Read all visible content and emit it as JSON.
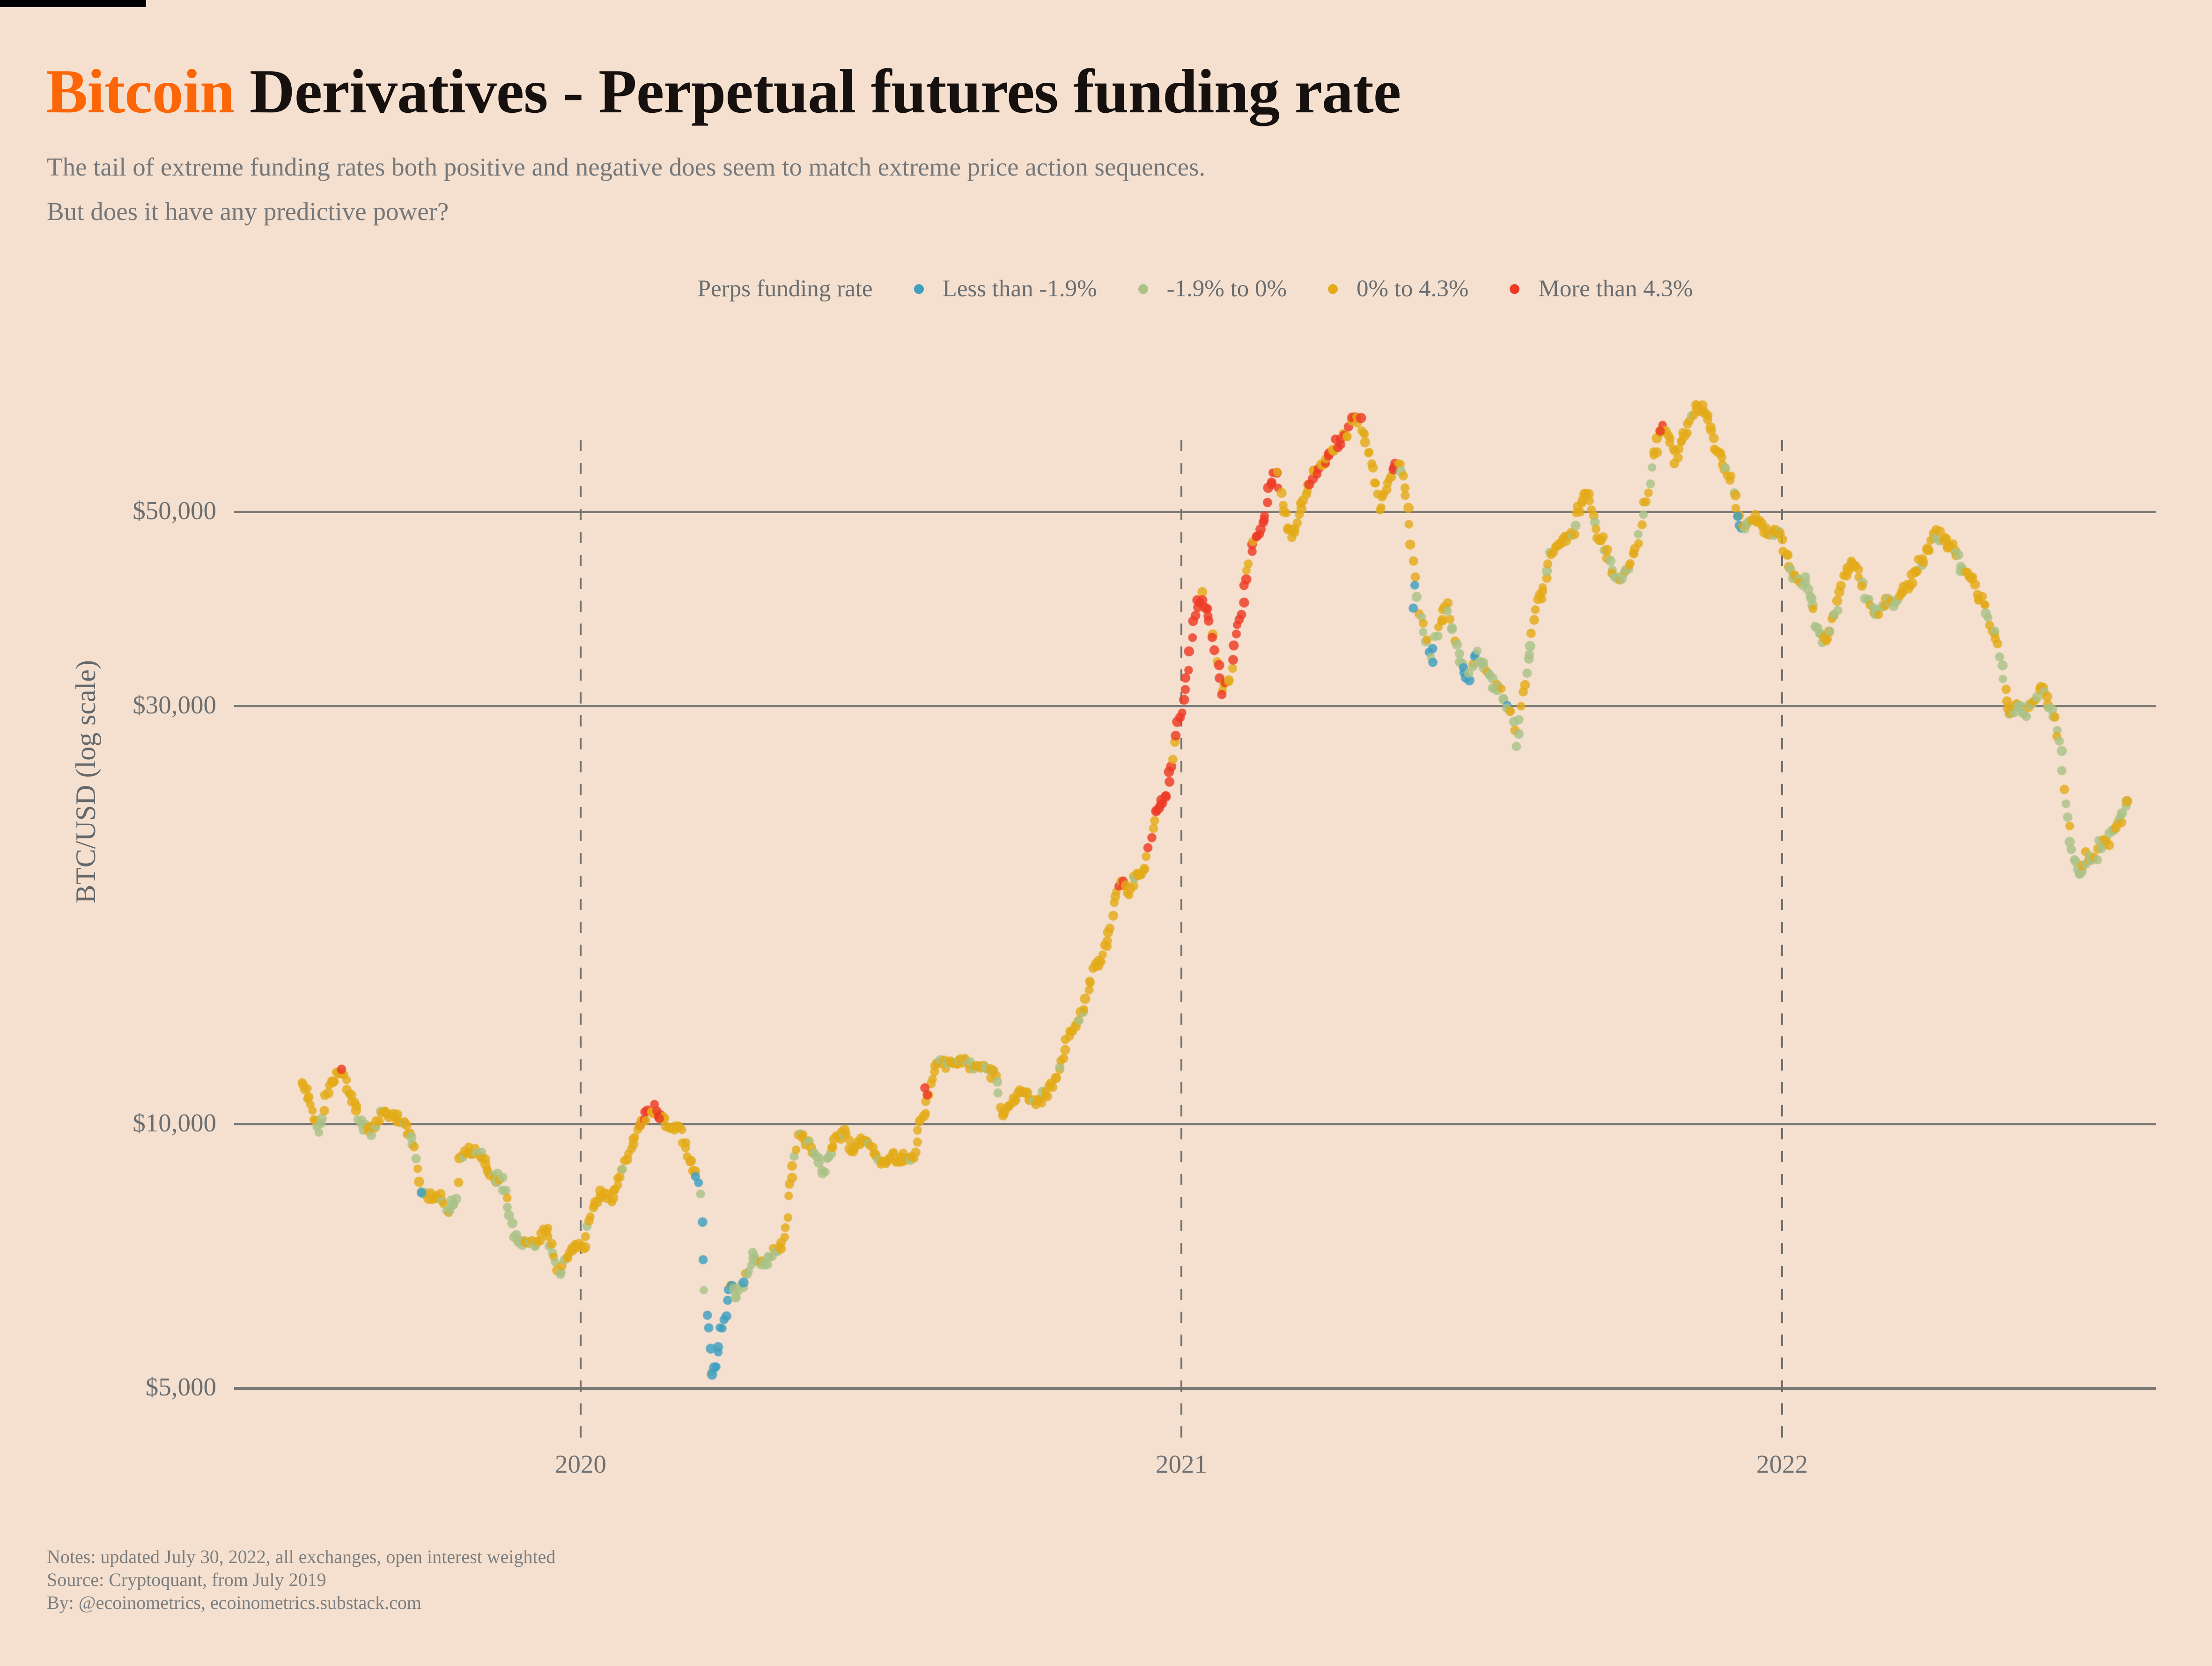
{
  "header": {
    "title_accent": "Bitcoin ",
    "title_bold": "Derivatives",
    "title_rest": " - Perpetual futures funding rate",
    "subtitle_line1": "The tail of extreme funding rates both positive and negative does seem to match extreme price action sequences.",
    "subtitle_line2": "But does it have any predictive power?"
  },
  "legend": {
    "label": "Perps funding rate"
  },
  "footer": {
    "notes": "Notes: updated July 30, 2022, all exchanges, open interest weighted",
    "source": "Source: Cryptoquant, from July 2019",
    "by": "By: @ecoinometrics, ecoinometrics.substack.com"
  },
  "chart_data": {
    "type": "scatter",
    "ylabel": "BTC/USD (log scale)",
    "y_scale": "log",
    "x_range": [
      2019.53,
      2022.59
    ],
    "y_range": [
      4700,
      72000
    ],
    "grid": true,
    "legend_position": "top-center",
    "y_ticks": [
      {
        "value": 50000,
        "label": "$50,000"
      },
      {
        "value": 30000,
        "label": "$30,000"
      },
      {
        "value": 10000,
        "label": "$10,000"
      },
      {
        "value": 5000,
        "label": "$5,000"
      }
    ],
    "x_ticks": [
      {
        "value": 2020,
        "label": "2020"
      },
      {
        "value": 2021,
        "label": "2021"
      },
      {
        "value": 2022,
        "label": "2022"
      }
    ],
    "categories": [
      {
        "key": "B",
        "label": "Less than -1.9%",
        "color": "#3e9fbf"
      },
      {
        "key": "G",
        "label": "-1.9% to 0%",
        "color": "#a9c287"
      },
      {
        "key": "Y",
        "label": "0% to 4.3%",
        "color": "#e3ab18"
      },
      {
        "key": "R",
        "label": "More than 4.3%",
        "color": "#ee3a24"
      }
    ],
    "mix_weights": {
      "Y": {
        "Y": 0.88,
        "G": 0.12
      },
      "YG": {
        "Y": 0.62,
        "G": 0.38
      },
      "GY": {
        "G": 0.55,
        "Y": 0.45
      },
      "G": {
        "G": 0.85,
        "Y": 0.15
      },
      "GB": {
        "G": 0.6,
        "B": 0.25,
        "Y": 0.15
      },
      "BG": {
        "B": 0.55,
        "G": 0.35,
        "Y": 0.1
      },
      "B": {
        "B": 0.85,
        "G": 0.15
      },
      "YB": {
        "Y": 0.55,
        "B": 0.25,
        "G": 0.2
      },
      "RY": {
        "R": 0.55,
        "Y": 0.45
      },
      "YR": {
        "Y": 0.72,
        "R": 0.28
      },
      "R": {
        "R": 0.8,
        "Y": 0.2
      }
    },
    "anchors": [
      [
        2019.535,
        11300,
        "Y"
      ],
      [
        2019.55,
        10600,
        "Y"
      ],
      [
        2019.565,
        9900,
        "GY"
      ],
      [
        2019.578,
        10900,
        "Y"
      ],
      [
        2019.592,
        11600,
        "Y"
      ],
      [
        2019.605,
        11300,
        "Y"
      ],
      [
        2019.62,
        10700,
        "Y"
      ],
      [
        2019.635,
        10100,
        "GY"
      ],
      [
        2019.65,
        9700,
        "Y"
      ],
      [
        2019.665,
        10200,
        "Y"
      ],
      [
        2019.68,
        10300,
        "Y"
      ],
      [
        2019.695,
        10150,
        "Y"
      ],
      [
        2019.71,
        9900,
        "Y"
      ],
      [
        2019.722,
        9500,
        "GY"
      ],
      [
        2019.735,
        8400,
        "GY"
      ],
      [
        2019.75,
        8300,
        "Y"
      ],
      [
        2019.765,
        8200,
        "GY"
      ],
      [
        2019.778,
        8050,
        "GY"
      ],
      [
        2019.79,
        8000,
        "G"
      ],
      [
        2019.8,
        9300,
        "Y"
      ],
      [
        2019.815,
        9350,
        "Y"
      ],
      [
        2019.83,
        9150,
        "Y"
      ],
      [
        2019.845,
        9000,
        "Y"
      ],
      [
        2019.86,
        8700,
        "GY"
      ],
      [
        2019.875,
        8450,
        "GY"
      ],
      [
        2019.888,
        7600,
        "G"
      ],
      [
        2019.9,
        7150,
        "G"
      ],
      [
        2019.913,
        7300,
        "GY"
      ],
      [
        2019.925,
        7250,
        "Y"
      ],
      [
        2019.94,
        7450,
        "Y"
      ],
      [
        2019.953,
        7150,
        "GY"
      ],
      [
        2019.965,
        6800,
        "G"
      ],
      [
        2019.978,
        7100,
        "GY"
      ],
      [
        2019.99,
        7200,
        "Y"
      ],
      [
        2020.005,
        7250,
        "Y"
      ],
      [
        2020.02,
        7900,
        "Y"
      ],
      [
        2020.035,
        8350,
        "Y"
      ],
      [
        2020.05,
        8150,
        "Y"
      ],
      [
        2020.065,
        8700,
        "Y"
      ],
      [
        2020.08,
        9350,
        "Y"
      ],
      [
        2020.095,
        9850,
        "YR"
      ],
      [
        2020.11,
        10200,
        "RY"
      ],
      [
        2020.125,
        10300,
        "RY"
      ],
      [
        2020.14,
        10050,
        "Y"
      ],
      [
        2020.155,
        9850,
        "Y"
      ],
      [
        2020.17,
        9600,
        "Y"
      ],
      [
        2020.185,
        8900,
        "Y"
      ],
      [
        2020.198,
        8300,
        "B"
      ],
      [
        2020.208,
        6200,
        "B"
      ],
      [
        2020.218,
        5200,
        "B"
      ],
      [
        2020.228,
        5450,
        "B"
      ],
      [
        2020.238,
        6000,
        "BG"
      ],
      [
        2020.25,
        6550,
        "BG"
      ],
      [
        2020.262,
        6350,
        "G"
      ],
      [
        2020.275,
        6750,
        "GB"
      ],
      [
        2020.288,
        7150,
        "G"
      ],
      [
        2020.3,
        6950,
        "G"
      ],
      [
        2020.313,
        7000,
        "G"
      ],
      [
        2020.325,
        7150,
        "GY"
      ],
      [
        2020.338,
        7550,
        "Y"
      ],
      [
        2020.35,
        8700,
        "Y"
      ],
      [
        2020.363,
        9850,
        "Y"
      ],
      [
        2020.375,
        9550,
        "Y"
      ],
      [
        2020.388,
        9450,
        "GY"
      ],
      [
        2020.4,
        8850,
        "G"
      ],
      [
        2020.413,
        9250,
        "GY"
      ],
      [
        2020.425,
        9700,
        "Y"
      ],
      [
        2020.44,
        9750,
        "Y"
      ],
      [
        2020.455,
        9450,
        "Y"
      ],
      [
        2020.47,
        9400,
        "Y"
      ],
      [
        2020.485,
        9300,
        "Y"
      ],
      [
        2020.5,
        9150,
        "Y"
      ],
      [
        2020.515,
        9200,
        "Y"
      ],
      [
        2020.53,
        9150,
        "Y"
      ],
      [
        2020.545,
        9250,
        "Y"
      ],
      [
        2020.558,
        9500,
        "Y"
      ],
      [
        2020.57,
        10300,
        "RY"
      ],
      [
        2020.582,
        11100,
        "Y"
      ],
      [
        2020.595,
        11750,
        "Y"
      ],
      [
        2020.61,
        11850,
        "Y"
      ],
      [
        2020.625,
        11950,
        "Y"
      ],
      [
        2020.64,
        11750,
        "Y"
      ],
      [
        2020.655,
        11600,
        "GY"
      ],
      [
        2020.668,
        11850,
        "Y"
      ],
      [
        2020.68,
        11550,
        "GY"
      ],
      [
        2020.692,
        11350,
        "GY"
      ],
      [
        2020.703,
        10350,
        "GY"
      ],
      [
        2020.715,
        10550,
        "Y"
      ],
      [
        2020.728,
        10700,
        "Y"
      ],
      [
        2020.74,
        10750,
        "Y"
      ],
      [
        2020.753,
        10650,
        "Y"
      ],
      [
        2020.765,
        10800,
        "Y"
      ],
      [
        2020.778,
        10950,
        "Y"
      ],
      [
        2020.79,
        11300,
        "Y"
      ],
      [
        2020.803,
        11700,
        "Y"
      ],
      [
        2020.815,
        12750,
        "Y"
      ],
      [
        2020.828,
        13050,
        "Y"
      ],
      [
        2020.84,
        13650,
        "Y"
      ],
      [
        2020.853,
        14900,
        "Y"
      ],
      [
        2020.865,
        15550,
        "Y"
      ],
      [
        2020.878,
        16300,
        "Y"
      ],
      [
        2020.89,
        18150,
        "Y"
      ],
      [
        2020.9,
        19300,
        "RY"
      ],
      [
        2020.912,
        18300,
        "Y"
      ],
      [
        2020.925,
        19150,
        "Y"
      ],
      [
        2020.938,
        19300,
        "Y"
      ],
      [
        2020.95,
        21400,
        "RY"
      ],
      [
        2020.963,
        23300,
        "RY"
      ],
      [
        2020.975,
        23600,
        "R"
      ],
      [
        2020.988,
        26800,
        "R"
      ],
      [
        2021.0,
        29300,
        "R"
      ],
      [
        2021.012,
        33500,
        "R"
      ],
      [
        2021.022,
        39000,
        "R"
      ],
      [
        2021.033,
        40300,
        "R"
      ],
      [
        2021.045,
        38200,
        "R"
      ],
      [
        2021.055,
        35500,
        "RY"
      ],
      [
        2021.067,
        31500,
        "RY"
      ],
      [
        2021.078,
        32100,
        "R"
      ],
      [
        2021.09,
        35500,
        "R"
      ],
      [
        2021.1,
        38500,
        "R"
      ],
      [
        2021.112,
        44500,
        "R"
      ],
      [
        2021.125,
        47000,
        "RY"
      ],
      [
        2021.138,
        48800,
        "R"
      ],
      [
        2021.148,
        53500,
        "R"
      ],
      [
        2021.158,
        56200,
        "R"
      ],
      [
        2021.17,
        49500,
        "Y"
      ],
      [
        2021.182,
        47000,
        "Y"
      ],
      [
        2021.195,
        50500,
        "Y"
      ],
      [
        2021.208,
        52500,
        "Y"
      ],
      [
        2021.22,
        55000,
        "YR"
      ],
      [
        2021.232,
        56800,
        "YR"
      ],
      [
        2021.245,
        58500,
        "RY"
      ],
      [
        2021.258,
        59800,
        "YR"
      ],
      [
        2021.27,
        61500,
        "RY"
      ],
      [
        2021.282,
        63200,
        "RY"
      ],
      [
        2021.292,
        63800,
        "RY"
      ],
      [
        2021.305,
        60500,
        "Y"
      ],
      [
        2021.318,
        55500,
        "Y"
      ],
      [
        2021.33,
        50800,
        "Y"
      ],
      [
        2021.342,
        54200,
        "Y"
      ],
      [
        2021.353,
        57200,
        "RY"
      ],
      [
        2021.365,
        55800,
        "Y"
      ],
      [
        2021.375,
        50500,
        "Y"
      ],
      [
        2021.385,
        43500,
        "YB"
      ],
      [
        2021.395,
        38500,
        "GY"
      ],
      [
        2021.405,
        36000,
        "GY"
      ],
      [
        2021.417,
        34200,
        "GB"
      ],
      [
        2021.428,
        36800,
        "GY"
      ],
      [
        2021.44,
        39200,
        "Y"
      ],
      [
        2021.452,
        37000,
        "GY"
      ],
      [
        2021.463,
        34000,
        "GB"
      ],
      [
        2021.475,
        32000,
        "BG"
      ],
      [
        2021.487,
        33800,
        "GB"
      ],
      [
        2021.5,
        33500,
        "G"
      ],
      [
        2021.512,
        32200,
        "GB"
      ],
      [
        2021.523,
        31300,
        "GB"
      ],
      [
        2021.535,
        30600,
        "BG"
      ],
      [
        2021.547,
        29800,
        "G"
      ],
      [
        2021.557,
        27400,
        "G"
      ],
      [
        2021.568,
        30800,
        "GY"
      ],
      [
        2021.578,
        34800,
        "GY"
      ],
      [
        2021.59,
        38800,
        "Y"
      ],
      [
        2021.602,
        40800,
        "Y"
      ],
      [
        2021.615,
        44800,
        "Y"
      ],
      [
        2021.628,
        46800,
        "Y"
      ],
      [
        2021.64,
        47800,
        "Y"
      ],
      [
        2021.652,
        46300,
        "GY"
      ],
      [
        2021.663,
        49800,
        "Y"
      ],
      [
        2021.675,
        52800,
        "Y"
      ],
      [
        2021.685,
        50300,
        "Y"
      ],
      [
        2021.697,
        46300,
        "Y"
      ],
      [
        2021.71,
        44300,
        "GY"
      ],
      [
        2021.722,
        41300,
        "GY"
      ],
      [
        2021.735,
        42800,
        "GY"
      ],
      [
        2021.747,
        43800,
        "Y"
      ],
      [
        2021.76,
        46800,
        "Y"
      ],
      [
        2021.772,
        51300,
        "Y"
      ],
      [
        2021.785,
        57300,
        "Y"
      ],
      [
        2021.797,
        62300,
        "YR"
      ],
      [
        2021.81,
        61300,
        "Y"
      ],
      [
        2021.822,
        57800,
        "Y"
      ],
      [
        2021.835,
        60300,
        "Y"
      ],
      [
        2021.847,
        63300,
        "Y"
      ],
      [
        2021.858,
        66800,
        "Y"
      ],
      [
        2021.87,
        65300,
        "Y"
      ],
      [
        2021.882,
        61300,
        "Y"
      ],
      [
        2021.893,
        57800,
        "Y"
      ],
      [
        2021.905,
        56300,
        "Y"
      ],
      [
        2021.917,
        54300,
        "Y"
      ],
      [
        2021.928,
        48800,
        "YB"
      ],
      [
        2021.94,
        48300,
        "GY"
      ],
      [
        2021.952,
        49800,
        "Y"
      ],
      [
        2021.963,
        49300,
        "Y"
      ],
      [
        2021.975,
        48300,
        "Y"
      ],
      [
        2021.988,
        47300,
        "GY"
      ],
      [
        2022.0,
        46800,
        "Y"
      ],
      [
        2022.012,
        43300,
        "Y"
      ],
      [
        2022.025,
        42300,
        "GY"
      ],
      [
        2022.037,
        41800,
        "GY"
      ],
      [
        2022.05,
        38300,
        "GY"
      ],
      [
        2022.062,
        35300,
        "G"
      ],
      [
        2022.075,
        35800,
        "GY"
      ],
      [
        2022.087,
        37800,
        "GY"
      ],
      [
        2022.1,
        41300,
        "Y"
      ],
      [
        2022.112,
        43800,
        "Y"
      ],
      [
        2022.125,
        43300,
        "Y"
      ],
      [
        2022.137,
        40300,
        "GY"
      ],
      [
        2022.15,
        38800,
        "GY"
      ],
      [
        2022.162,
        37800,
        "G"
      ],
      [
        2022.175,
        39300,
        "GY"
      ],
      [
        2022.187,
        38800,
        "GY"
      ],
      [
        2022.2,
        40800,
        "Y"
      ],
      [
        2022.212,
        41800,
        "Y"
      ],
      [
        2022.225,
        42800,
        "Y"
      ],
      [
        2022.237,
        44800,
        "Y"
      ],
      [
        2022.25,
        46800,
        "Y"
      ],
      [
        2022.262,
        47300,
        "Y"
      ],
      [
        2022.275,
        46300,
        "Y"
      ],
      [
        2022.287,
        45300,
        "YG"
      ],
      [
        2022.3,
        43300,
        "GY"
      ],
      [
        2022.312,
        41300,
        "GY"
      ],
      [
        2022.325,
        40300,
        "Y"
      ],
      [
        2022.337,
        39300,
        "YG"
      ],
      [
        2022.35,
        37300,
        "Y"
      ],
      [
        2022.36,
        35300,
        "Y"
      ],
      [
        2022.37,
        31300,
        "GY"
      ],
      [
        2022.38,
        29300,
        "GY"
      ],
      [
        2022.392,
        30300,
        "GY"
      ],
      [
        2022.405,
        29800,
        "GY"
      ],
      [
        2022.417,
        30300,
        "GY"
      ],
      [
        2022.43,
        31300,
        "Y"
      ],
      [
        2022.442,
        30300,
        "GY"
      ],
      [
        2022.453,
        29300,
        "GY"
      ],
      [
        2022.462,
        27300,
        "G"
      ],
      [
        2022.472,
        23300,
        "G"
      ],
      [
        2022.483,
        20300,
        "G"
      ],
      [
        2022.493,
        18800,
        "G"
      ],
      [
        2022.505,
        20300,
        "GY"
      ],
      [
        2022.517,
        19800,
        "GY"
      ],
      [
        2022.53,
        20800,
        "GY"
      ],
      [
        2022.542,
        21300,
        "YG"
      ],
      [
        2022.553,
        21800,
        "YG"
      ],
      [
        2022.565,
        22300,
        "G"
      ],
      [
        2022.578,
        23300,
        "G"
      ]
    ],
    "extra_points": [
      [
        2019.602,
        11550,
        "R"
      ],
      [
        2019.735,
        8350,
        "B"
      ],
      [
        2020.127,
        10350,
        "R"
      ],
      [
        2020.131,
        10150,
        "R"
      ],
      [
        2020.573,
        11000,
        "R"
      ],
      [
        2020.577,
        10800,
        "R"
      ],
      [
        2021.386,
        38800,
        "B"
      ],
      [
        2021.797,
        61800,
        "R"
      ],
      [
        2021.926,
        49400,
        "B"
      ]
    ],
    "point_style": {
      "radius": 10,
      "opacity": 0.82,
      "step_days": 1
    }
  }
}
